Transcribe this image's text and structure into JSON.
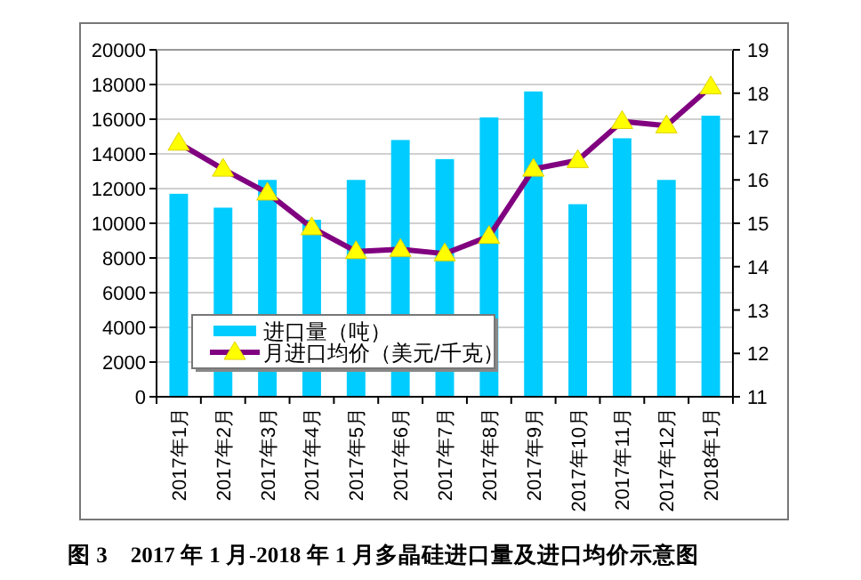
{
  "chart_data": {
    "type": "bar",
    "title": "图 3　2017 年 1 月-2018 年 1 月多晶硅进口量及进口均价示意图",
    "categories": [
      "2017年1月",
      "2017年2月",
      "2017年3月",
      "2017年4月",
      "2017年5月",
      "2017年6月",
      "2017年7月",
      "2017年8月",
      "2017年9月",
      "2017年10月",
      "2017年11月",
      "2017年12月",
      "2018年1月"
    ],
    "series": [
      {
        "name": "进口量（吨）",
        "color": "#00ccff",
        "values": [
          11700,
          10900,
          12500,
          10200,
          12500,
          14800,
          13700,
          16100,
          17600,
          11100,
          14900,
          12500,
          16200
        ]
      },
      {
        "name": "月进口均价（美元/千克）",
        "type": "line",
        "axis": "y2",
        "color": "#800080",
        "marker": "triangle",
        "values": [
          16.85,
          16.25,
          15.7,
          14.9,
          14.35,
          14.4,
          14.3,
          14.7,
          16.25,
          16.45,
          17.35,
          17.25,
          18.15
        ]
      }
    ],
    "ylim": [
      0,
      20000
    ],
    "yticks": [
      0,
      2000,
      4000,
      6000,
      8000,
      10000,
      12000,
      14000,
      16000,
      18000,
      20000
    ],
    "y2lim": [
      11,
      19
    ],
    "y2ticks": [
      11,
      12,
      13,
      14,
      15,
      16,
      17,
      18,
      19
    ],
    "grid": "y",
    "legend": "bottom left"
  }
}
